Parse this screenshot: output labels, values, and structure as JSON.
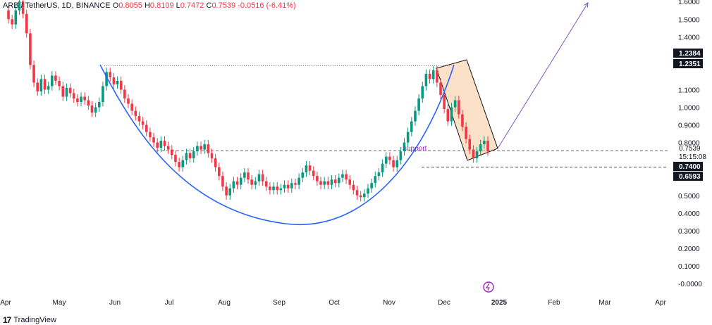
{
  "header": {
    "symbol": "ARB / TetherUS, 1D, BINANCE",
    "open_label": "O",
    "open_value": "0.8055",
    "high_label": "H",
    "high_value": "0.8109",
    "low_label": "L",
    "low_value": "0.7472",
    "close_label": "C",
    "close_value": "0.7539",
    "change": "-0.0516 (-6.41%)"
  },
  "footer": {
    "brand": "TradingView"
  },
  "chart_data": {
    "type": "candlestick",
    "x_ticks": [
      "Apr",
      "May",
      "Jun",
      "Jul",
      "Aug",
      "Sep",
      "Oct",
      "Nov",
      "Dec",
      "2025",
      "Feb",
      "Mar",
      "Apr"
    ],
    "y_ticks": [
      "1.6000",
      "1.5000",
      "1.4000",
      "1.1000",
      "1.0000",
      "0.9000",
      "0.8000",
      "0.5000",
      "0.4000",
      "0.3000",
      "0.2000",
      "0.1000",
      "-0.0000"
    ],
    "ylim": [
      -0.02,
      1.6
    ],
    "price_labels": [
      {
        "text": "1.2384",
        "style": "dark"
      },
      {
        "text": "1.2351",
        "style": "dark"
      },
      {
        "text": "0.7539",
        "style": "plain"
      },
      {
        "text": "15:15:08",
        "style": "plain"
      },
      {
        "text": "0.7400",
        "style": "dark"
      },
      {
        "text": "0.6593",
        "style": "dark"
      }
    ],
    "levels": [
      1.235,
      0.754,
      0.66
    ],
    "annotation": "support",
    "colors": {
      "up": "#089981",
      "down": "#f23645",
      "curve": "#2962ff",
      "arrow": "#7e57c2",
      "box": "#f5c89a",
      "event": "#9c27b0"
    },
    "candles": [
      [
        1.55,
        1.5
      ],
      [
        1.5,
        1.47
      ],
      [
        1.47,
        1.55
      ],
      [
        1.55,
        1.6
      ],
      [
        1.6,
        1.53
      ],
      [
        1.53,
        1.42
      ],
      [
        1.42,
        1.24
      ],
      [
        1.24,
        1.14
      ],
      [
        1.14,
        1.09
      ],
      [
        1.09,
        1.16
      ],
      [
        1.16,
        1.1
      ],
      [
        1.1,
        1.12
      ],
      [
        1.12,
        1.18
      ],
      [
        1.18,
        1.15
      ],
      [
        1.15,
        1.12
      ],
      [
        1.12,
        1.06
      ],
      [
        1.06,
        1.11
      ],
      [
        1.11,
        1.08
      ],
      [
        1.08,
        1.05
      ],
      [
        1.05,
        1.03
      ],
      [
        1.03,
        1.06
      ],
      [
        1.06,
        1.04
      ],
      [
        1.04,
        1.01
      ],
      [
        1.01,
        0.97
      ],
      [
        0.97,
        1.0
      ],
      [
        1.0,
        1.03
      ],
      [
        1.03,
        1.12
      ],
      [
        1.12,
        1.2
      ],
      [
        1.2,
        1.17
      ],
      [
        1.17,
        1.13
      ],
      [
        1.13,
        1.15
      ],
      [
        1.15,
        1.1
      ],
      [
        1.1,
        1.05
      ],
      [
        1.05,
        1.02
      ],
      [
        1.02,
        0.98
      ],
      [
        0.98,
        0.95
      ],
      [
        0.95,
        0.92
      ],
      [
        0.92,
        0.9
      ],
      [
        0.9,
        0.86
      ],
      [
        0.86,
        0.83
      ],
      [
        0.83,
        0.8
      ],
      [
        0.8,
        0.77
      ],
      [
        0.77,
        0.81
      ],
      [
        0.81,
        0.78
      ],
      [
        0.78,
        0.76
      ],
      [
        0.76,
        0.73
      ],
      [
        0.73,
        0.69
      ],
      [
        0.69,
        0.66
      ],
      [
        0.66,
        0.7
      ],
      [
        0.7,
        0.74
      ],
      [
        0.74,
        0.71
      ],
      [
        0.71,
        0.75
      ],
      [
        0.75,
        0.78
      ],
      [
        0.78,
        0.76
      ],
      [
        0.76,
        0.79
      ],
      [
        0.79,
        0.74
      ],
      [
        0.74,
        0.71
      ],
      [
        0.71,
        0.66
      ],
      [
        0.66,
        0.61
      ],
      [
        0.61,
        0.55
      ],
      [
        0.55,
        0.5
      ],
      [
        0.5,
        0.54
      ],
      [
        0.54,
        0.58
      ],
      [
        0.58,
        0.56
      ],
      [
        0.56,
        0.6
      ],
      [
        0.6,
        0.63
      ],
      [
        0.63,
        0.59
      ],
      [
        0.59,
        0.56
      ],
      [
        0.56,
        0.58
      ],
      [
        0.58,
        0.62
      ],
      [
        0.62,
        0.58
      ],
      [
        0.58,
        0.55
      ],
      [
        0.55,
        0.53
      ],
      [
        0.53,
        0.55
      ],
      [
        0.55,
        0.53
      ],
      [
        0.53,
        0.54
      ],
      [
        0.54,
        0.56
      ],
      [
        0.56,
        0.54
      ],
      [
        0.54,
        0.57
      ],
      [
        0.57,
        0.56
      ],
      [
        0.56,
        0.6
      ],
      [
        0.6,
        0.63
      ],
      [
        0.63,
        0.67
      ],
      [
        0.67,
        0.64
      ],
      [
        0.64,
        0.61
      ],
      [
        0.61,
        0.58
      ],
      [
        0.58,
        0.56
      ],
      [
        0.56,
        0.58
      ],
      [
        0.58,
        0.56
      ],
      [
        0.56,
        0.59
      ],
      [
        0.59,
        0.57
      ],
      [
        0.57,
        0.6
      ],
      [
        0.6,
        0.62
      ],
      [
        0.62,
        0.59
      ],
      [
        0.59,
        0.56
      ],
      [
        0.56,
        0.53
      ],
      [
        0.53,
        0.5
      ],
      [
        0.5,
        0.49
      ],
      [
        0.49,
        0.51
      ],
      [
        0.51,
        0.54
      ],
      [
        0.54,
        0.57
      ],
      [
        0.57,
        0.61
      ],
      [
        0.61,
        0.63
      ],
      [
        0.63,
        0.68
      ],
      [
        0.68,
        0.72
      ],
      [
        0.72,
        0.7
      ],
      [
        0.7,
        0.66
      ],
      [
        0.66,
        0.7
      ],
      [
        0.7,
        0.75
      ],
      [
        0.75,
        0.8
      ],
      [
        0.8,
        0.86
      ],
      [
        0.86,
        0.92
      ],
      [
        0.92,
        0.98
      ],
      [
        0.98,
        1.05
      ],
      [
        1.05,
        1.12
      ],
      [
        1.12,
        1.19
      ],
      [
        1.19,
        1.16
      ],
      [
        1.16,
        1.21
      ],
      [
        1.21,
        1.14
      ],
      [
        1.14,
        1.07
      ],
      [
        1.07,
        0.99
      ],
      [
        0.99,
        0.92
      ],
      [
        0.92,
        1.0
      ],
      [
        1.0,
        1.04
      ],
      [
        1.04,
        0.96
      ],
      [
        0.96,
        0.89
      ],
      [
        0.89,
        0.82
      ],
      [
        0.82,
        0.76
      ],
      [
        0.76,
        0.71
      ],
      [
        0.71,
        0.75
      ],
      [
        0.75,
        0.79
      ],
      [
        0.79,
        0.81
      ],
      [
        0.81,
        0.75
      ]
    ]
  }
}
